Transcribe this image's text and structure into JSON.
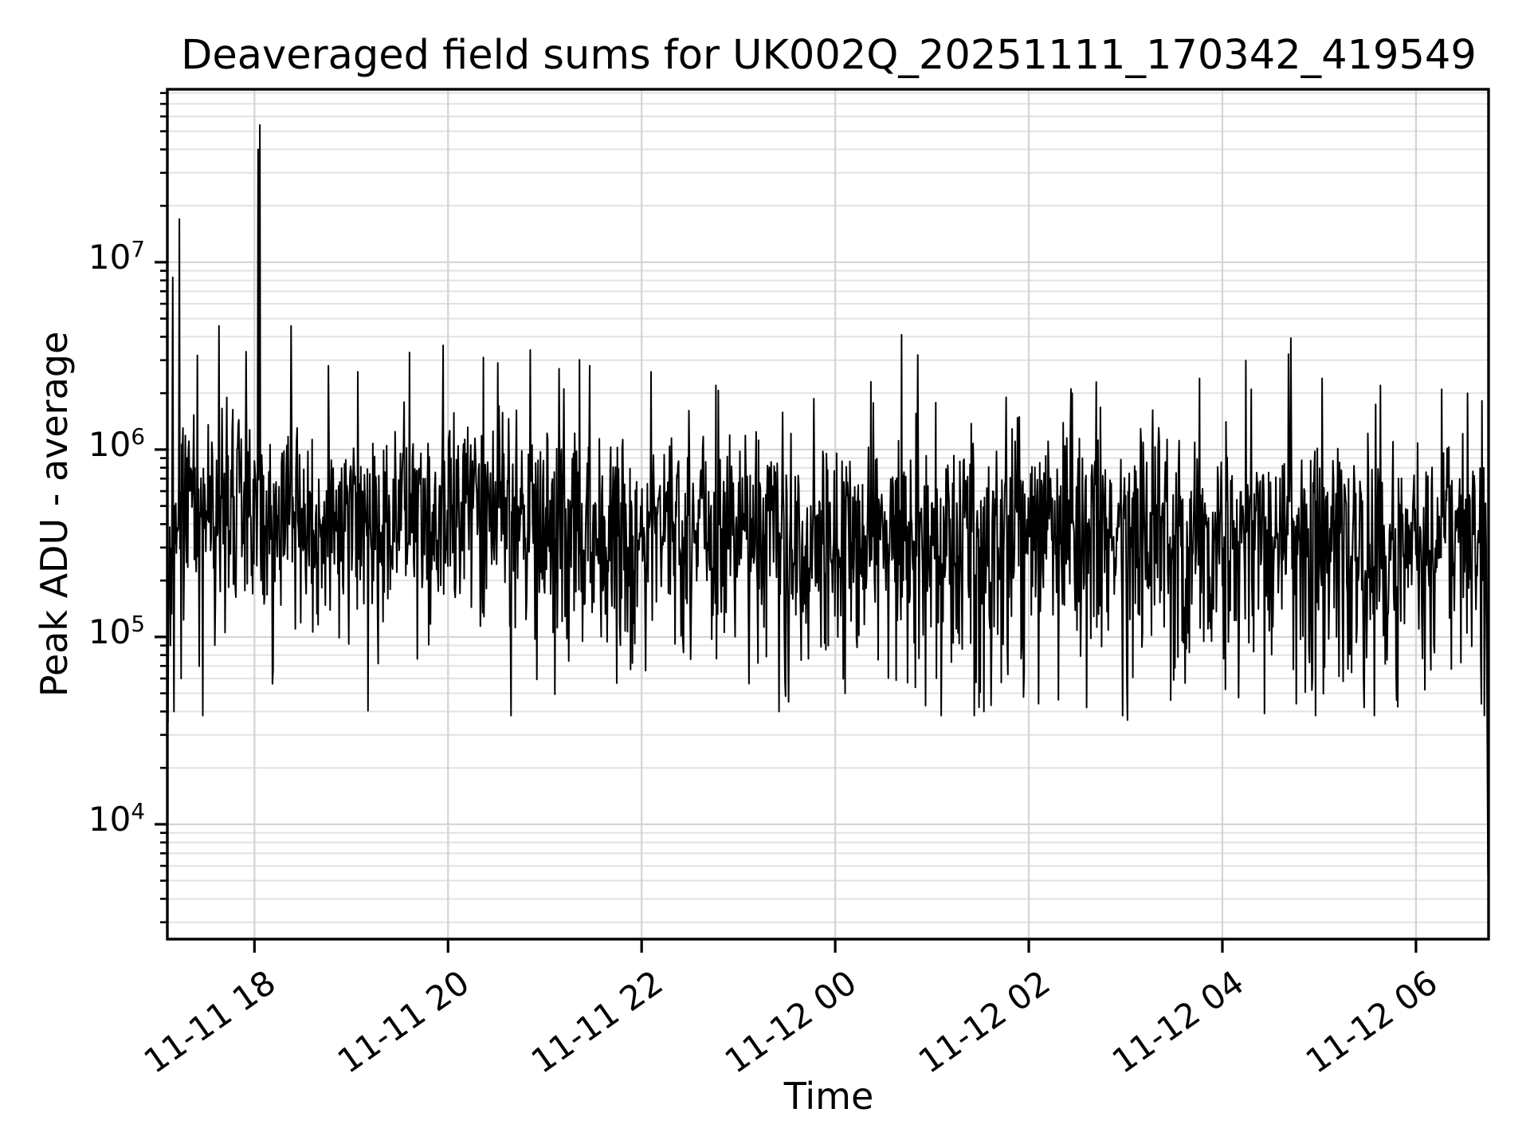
{
  "figure": {
    "background_color": "#ffffff",
    "text_color": "#000000"
  },
  "chart_data": {
    "type": "line",
    "title": "Deaveraged field sums for UK002Q_20251111_170342_419549",
    "xlabel": "Time",
    "ylabel": "Peak ADU - average",
    "legend": null,
    "grid": true,
    "colors": {
      "line": "#000000",
      "grid_major": "#d4d4d4",
      "grid_minor": "#e2e2e2",
      "spine": "#000000",
      "tick": "#000000"
    },
    "x_total_minutes": 819,
    "x_start_time": "11-11 17:06",
    "x_end_time": "11-12 06:45",
    "x_ticks": [
      {
        "label": "11-11 18",
        "minutes": 54
      },
      {
        "label": "11-11 20",
        "minutes": 174
      },
      {
        "label": "11-11 22",
        "minutes": 294
      },
      {
        "label": "11-12 00",
        "minutes": 414
      },
      {
        "label": "11-12 02",
        "minutes": 534
      },
      {
        "label": "11-12 04",
        "minutes": 654
      },
      {
        "label": "11-12 06",
        "minutes": 774
      }
    ],
    "ylim_log10": [
      3.387,
      7.923
    ],
    "y_scale": "log",
    "y_ticks": [
      {
        "base": "10",
        "exp": 7,
        "value": 10000000
      },
      {
        "base": "10",
        "exp": 6,
        "value": 1000000
      },
      {
        "base": "10",
        "exp": 5,
        "value": 100000
      },
      {
        "base": "10",
        "exp": 4,
        "value": 10000
      }
    ],
    "y_minor_decades": [
      3,
      4,
      5,
      6,
      7
    ],
    "series": {
      "name": "peak-adu-minus-average",
      "n_points": 2200,
      "seed": 1337,
      "baseline_log10_start": 5.74,
      "baseline_log10_end": 5.57,
      "noise_sigma_log10": 0.2,
      "dip_probability": 0.3,
      "spike_probability": 0.015,
      "clamp_log10": [
        4.58,
        6.66
      ],
      "events": [
        [
          0,
          550000
        ],
        [
          0.4,
          35000
        ],
        [
          1.1,
          160000
        ],
        [
          1.9,
          90000
        ],
        [
          3.3,
          8300000
        ],
        [
          4.2,
          40000
        ],
        [
          5.5,
          280000
        ],
        [
          7.3,
          17000000
        ],
        [
          8.4,
          60000
        ],
        [
          55.6,
          240000
        ],
        [
          56.3,
          40000000
        ],
        [
          56.9,
          1800000
        ],
        [
          57.4,
          54000000
        ],
        [
          58.2,
          200000
        ],
        [
          100,
          2800000
        ],
        [
          118,
          2600000
        ],
        [
          150,
          3300000
        ],
        [
          171,
          3600000
        ],
        [
          196,
          3100000
        ],
        [
          205,
          2900000
        ],
        [
          225,
          3400000
        ],
        [
          243,
          2700000
        ],
        [
          262,
          2800000
        ],
        [
          300,
          2600000
        ],
        [
          340,
          2200000
        ],
        [
          385,
          45000
        ],
        [
          420,
          50000
        ],
        [
          436,
          2300000
        ],
        [
          455,
          4100000
        ],
        [
          465,
          3200000
        ],
        [
          470,
          43000
        ],
        [
          506,
          40000
        ],
        [
          520,
          1900000
        ],
        [
          540,
          44000
        ],
        [
          561,
          2000000
        ],
        [
          570,
          42000
        ],
        [
          595,
          36000
        ],
        [
          622,
          46000
        ],
        [
          640,
          2400000
        ],
        [
          672,
          2100000
        ],
        [
          680,
          39000
        ],
        [
          700,
          44000
        ],
        [
          716,
          2400000
        ],
        [
          742,
          42000
        ],
        [
          752,
          2200000
        ],
        [
          762,
          46000
        ],
        [
          790,
          2100000
        ],
        [
          806,
          2000000
        ],
        [
          816,
          800000
        ],
        [
          817.4,
          300000
        ],
        [
          818.1,
          24000
        ],
        [
          818.6,
          6000
        ],
        [
          819,
          4200
        ]
      ]
    }
  }
}
